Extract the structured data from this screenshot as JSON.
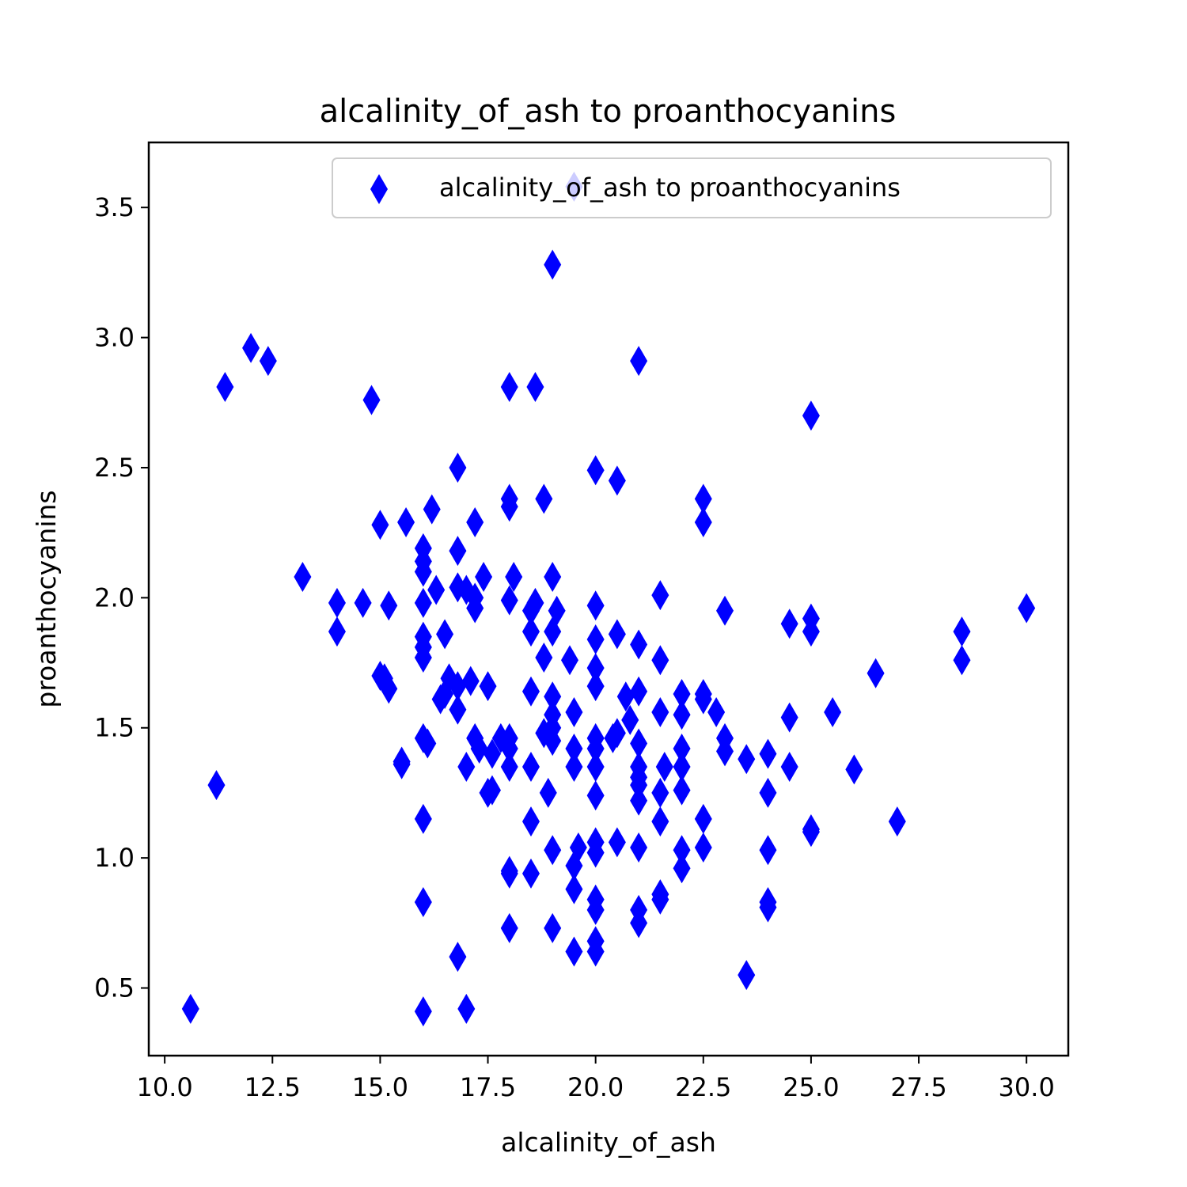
{
  "chart_data": {
    "type": "scatter",
    "title": "alcalinity_of_ash to proanthocyanins",
    "xlabel": "alcalinity_of_ash",
    "ylabel": "proanthocyanins",
    "xlim": [
      9.63,
      30.97
    ],
    "ylim": [
      0.24,
      3.75
    ],
    "x_ticks": [
      "10.0",
      "12.5",
      "15.0",
      "17.5",
      "20.0",
      "22.5",
      "25.0",
      "27.5",
      "30.0"
    ],
    "y_ticks": [
      "0.5",
      "1.0",
      "1.5",
      "2.0",
      "2.5",
      "3.0",
      "3.5"
    ],
    "x_tick_values": [
      10,
      12.5,
      15,
      17.5,
      20,
      22.5,
      25,
      27.5,
      30
    ],
    "y_tick_values": [
      0.5,
      1.0,
      1.5,
      2.0,
      2.5,
      3.0,
      3.5
    ],
    "grid": false,
    "legend_position": "upper-right",
    "series": [
      {
        "name": "alcalinity_of_ash to proanthocyanins",
        "marker": "diamond",
        "color": "#0000ff",
        "points": [
          [
            10.6,
            0.42
          ],
          [
            11.2,
            1.28
          ],
          [
            11.4,
            2.81
          ],
          [
            12.0,
            2.96
          ],
          [
            12.4,
            2.91
          ],
          [
            13.2,
            2.08
          ],
          [
            14.0,
            1.98
          ],
          [
            14.0,
            1.87
          ],
          [
            14.6,
            1.98
          ],
          [
            14.8,
            2.76
          ],
          [
            15.0,
            2.28
          ],
          [
            15.0,
            1.7
          ],
          [
            15.1,
            1.69
          ],
          [
            15.2,
            1.97
          ],
          [
            15.2,
            1.65
          ],
          [
            15.5,
            1.37
          ],
          [
            15.5,
            1.36
          ],
          [
            15.6,
            2.29
          ],
          [
            16.0,
            2.19
          ],
          [
            16.0,
            2.14
          ],
          [
            16.0,
            2.1
          ],
          [
            16.0,
            1.98
          ],
          [
            16.0,
            1.85
          ],
          [
            16.0,
            1.81
          ],
          [
            16.0,
            1.77
          ],
          [
            16.0,
            1.46
          ],
          [
            16.0,
            1.15
          ],
          [
            16.0,
            0.83
          ],
          [
            16.0,
            0.41
          ],
          [
            16.1,
            1.44
          ],
          [
            16.2,
            2.34
          ],
          [
            16.3,
            2.03
          ],
          [
            16.4,
            1.61
          ],
          [
            16.5,
            1.86
          ],
          [
            16.5,
            1.63
          ],
          [
            16.6,
            1.69
          ],
          [
            16.8,
            2.5
          ],
          [
            16.8,
            2.18
          ],
          [
            16.8,
            2.04
          ],
          [
            16.8,
            1.66
          ],
          [
            16.8,
            1.57
          ],
          [
            16.8,
            0.62
          ],
          [
            17.0,
            2.03
          ],
          [
            17.0,
            1.35
          ],
          [
            17.0,
            0.42
          ],
          [
            17.1,
            1.68
          ],
          [
            17.2,
            2.29
          ],
          [
            17.2,
            2.0
          ],
          [
            17.2,
            1.96
          ],
          [
            17.2,
            1.46
          ],
          [
            17.3,
            1.42
          ],
          [
            17.4,
            2.08
          ],
          [
            17.5,
            1.66
          ],
          [
            17.5,
            1.25
          ],
          [
            17.6,
            1.4
          ],
          [
            17.6,
            1.26
          ],
          [
            17.8,
            1.46
          ],
          [
            18.0,
            2.81
          ],
          [
            18.0,
            2.38
          ],
          [
            18.0,
            2.35
          ],
          [
            18.0,
            1.99
          ],
          [
            18.0,
            1.46
          ],
          [
            18.0,
            1.42
          ],
          [
            18.0,
            1.35
          ],
          [
            18.0,
            0.95
          ],
          [
            18.0,
            0.94
          ],
          [
            18.0,
            0.73
          ],
          [
            18.1,
            2.08
          ],
          [
            18.5,
            1.95
          ],
          [
            18.5,
            1.87
          ],
          [
            18.5,
            1.64
          ],
          [
            18.5,
            1.35
          ],
          [
            18.5,
            1.14
          ],
          [
            18.5,
            0.94
          ],
          [
            18.6,
            2.81
          ],
          [
            18.6,
            1.98
          ],
          [
            18.8,
            2.38
          ],
          [
            18.8,
            1.77
          ],
          [
            18.8,
            1.48
          ],
          [
            18.9,
            1.25
          ],
          [
            19.0,
            3.28
          ],
          [
            19.0,
            2.08
          ],
          [
            19.0,
            1.87
          ],
          [
            19.0,
            1.62
          ],
          [
            19.0,
            1.55
          ],
          [
            19.0,
            1.5
          ],
          [
            19.0,
            1.45
          ],
          [
            19.0,
            1.03
          ],
          [
            19.0,
            0.73
          ],
          [
            19.1,
            1.95
          ],
          [
            19.4,
            1.76
          ],
          [
            19.5,
            1.56
          ],
          [
            19.5,
            1.42
          ],
          [
            19.5,
            1.35
          ],
          [
            19.5,
            0.97
          ],
          [
            19.5,
            0.88
          ],
          [
            19.5,
            0.64
          ],
          [
            19.6,
            1.04
          ],
          [
            20.0,
            2.49
          ],
          [
            20.0,
            1.97
          ],
          [
            20.0,
            1.84
          ],
          [
            20.0,
            1.73
          ],
          [
            20.0,
            1.66
          ],
          [
            20.0,
            1.46
          ],
          [
            20.0,
            1.42
          ],
          [
            20.0,
            1.35
          ],
          [
            20.0,
            1.24
          ],
          [
            20.0,
            1.06
          ],
          [
            20.0,
            1.02
          ],
          [
            20.0,
            0.84
          ],
          [
            20.0,
            0.8
          ],
          [
            20.0,
            0.68
          ],
          [
            20.0,
            0.64
          ],
          [
            20.4,
            1.46
          ],
          [
            20.5,
            2.45
          ],
          [
            20.5,
            1.86
          ],
          [
            20.5,
            1.48
          ],
          [
            20.5,
            1.06
          ],
          [
            20.7,
            1.62
          ],
          [
            20.8,
            1.53
          ],
          [
            21.0,
            2.91
          ],
          [
            21.0,
            1.82
          ],
          [
            21.0,
            1.64
          ],
          [
            21.0,
            1.44
          ],
          [
            21.0,
            1.35
          ],
          [
            21.0,
            1.31
          ],
          [
            21.0,
            1.28
          ],
          [
            21.0,
            1.22
          ],
          [
            21.0,
            1.04
          ],
          [
            21.0,
            0.8
          ],
          [
            21.0,
            0.75
          ],
          [
            21.5,
            2.01
          ],
          [
            21.5,
            1.76
          ],
          [
            21.5,
            1.56
          ],
          [
            21.5,
            1.25
          ],
          [
            21.5,
            1.14
          ],
          [
            21.5,
            0.86
          ],
          [
            21.5,
            0.84
          ],
          [
            21.6,
            1.35
          ],
          [
            22.0,
            1.63
          ],
          [
            22.0,
            1.55
          ],
          [
            22.0,
            1.42
          ],
          [
            22.0,
            1.35
          ],
          [
            22.0,
            1.26
          ],
          [
            22.0,
            1.03
          ],
          [
            22.0,
            0.96
          ],
          [
            22.5,
            2.38
          ],
          [
            22.5,
            2.29
          ],
          [
            22.5,
            1.63
          ],
          [
            22.5,
            1.61
          ],
          [
            22.5,
            1.15
          ],
          [
            22.5,
            1.04
          ],
          [
            22.8,
            1.56
          ],
          [
            23.0,
            1.95
          ],
          [
            23.0,
            1.46
          ],
          [
            23.0,
            1.41
          ],
          [
            23.5,
            1.38
          ],
          [
            23.5,
            0.55
          ],
          [
            24.0,
            1.4
          ],
          [
            24.0,
            1.25
          ],
          [
            24.0,
            1.03
          ],
          [
            24.0,
            0.83
          ],
          [
            24.0,
            0.81
          ],
          [
            24.5,
            1.9
          ],
          [
            24.5,
            1.54
          ],
          [
            24.5,
            1.35
          ],
          [
            25.0,
            2.7
          ],
          [
            25.0,
            1.92
          ],
          [
            25.0,
            1.87
          ],
          [
            25.0,
            1.11
          ],
          [
            25.0,
            1.1
          ],
          [
            25.5,
            1.56
          ],
          [
            26.0,
            1.34
          ],
          [
            26.5,
            1.71
          ],
          [
            27.0,
            1.14
          ],
          [
            28.5,
            1.87
          ],
          [
            28.5,
            1.76
          ],
          [
            30.0,
            1.96
          ],
          [
            19.5,
            3.58
          ]
        ]
      }
    ]
  }
}
